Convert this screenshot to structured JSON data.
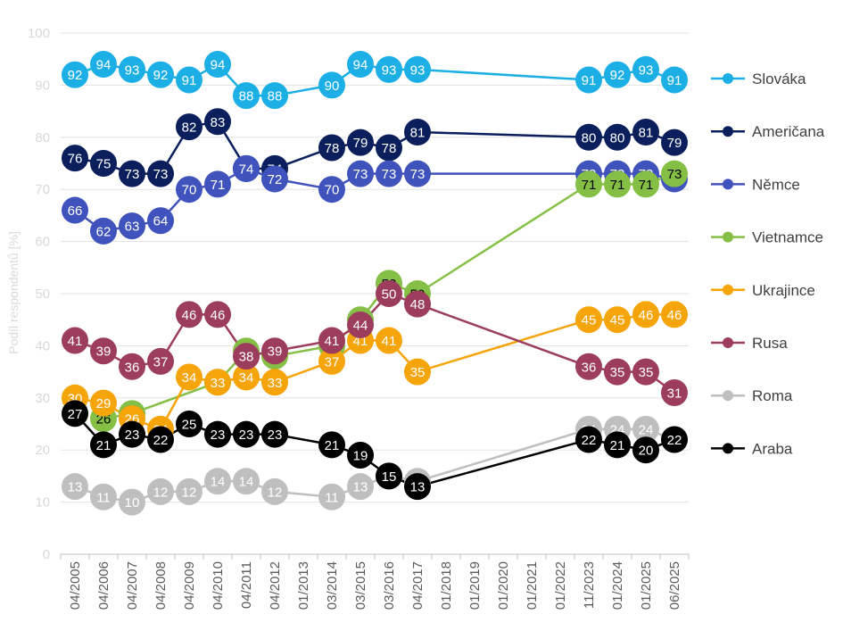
{
  "chart_data": {
    "type": "line",
    "ylabel": "Podíl respondentů [%]",
    "ylim": [
      0,
      100
    ],
    "yticks": [
      0,
      10,
      20,
      30,
      40,
      50,
      60,
      70,
      80,
      90,
      100
    ],
    "grid": "horizontal",
    "legend_position": "right",
    "categories": [
      "04/2005",
      "04/2006",
      "04/2007",
      "04/2008",
      "04/2009",
      "04/2010",
      "04/2011",
      "04/2012",
      "01/2013",
      "03/2014",
      "03/2015",
      "03/2016",
      "04/2017",
      "01/2018",
      "01/2019",
      "01/2020",
      "01/2021",
      "01/2022",
      "11/2023",
      "01/2024",
      "01/2025",
      "06/2025"
    ],
    "series": [
      {
        "name": "Slováka",
        "color": "#1bafe6",
        "label_color": "#ffffff",
        "values": [
          92,
          94,
          93,
          92,
          91,
          94,
          88,
          88,
          null,
          90,
          94,
          93,
          93,
          null,
          null,
          null,
          null,
          null,
          91,
          92,
          93,
          91
        ]
      },
      {
        "name": "Američana",
        "color": "#0b1f5c",
        "label_color": "#ffffff",
        "values": [
          76,
          75,
          73,
          73,
          82,
          83,
          74,
          74,
          null,
          78,
          79,
          78,
          81,
          null,
          null,
          null,
          null,
          null,
          80,
          80,
          81,
          79
        ]
      },
      {
        "name": "Němce",
        "color": "#4052bb",
        "label_color": "#ffffff",
        "values": [
          66,
          62,
          63,
          64,
          70,
          71,
          74,
          72,
          null,
          70,
          73,
          73,
          73,
          null,
          null,
          null,
          null,
          null,
          73,
          73,
          73,
          72
        ]
      },
      {
        "name": "Vietnamce",
        "color": "#85bf45",
        "label_color": "#000000",
        "values": [
          null,
          26,
          27,
          null,
          null,
          33,
          39,
          38,
          null,
          40,
          45,
          52,
          50,
          null,
          null,
          null,
          null,
          null,
          71,
          71,
          71,
          73
        ]
      },
      {
        "name": "Ukrajince",
        "color": "#f5a40a",
        "label_color": "#ffffff",
        "values": [
          30,
          29,
          26,
          24,
          34,
          33,
          34,
          33,
          null,
          37,
          41,
          41,
          35,
          null,
          null,
          null,
          null,
          null,
          45,
          45,
          46,
          46
        ]
      },
      {
        "name": "Rusa",
        "color": "#9c3d5e",
        "label_color": "#ffffff",
        "values": [
          41,
          39,
          36,
          37,
          46,
          46,
          38,
          39,
          null,
          41,
          44,
          50,
          48,
          null,
          null,
          null,
          null,
          null,
          36,
          35,
          35,
          31
        ]
      },
      {
        "name": "Roma",
        "color": "#bfbfbf",
        "label_color": "#ffffff",
        "values": [
          13,
          11,
          10,
          12,
          12,
          14,
          14,
          12,
          null,
          11,
          13,
          15,
          14,
          null,
          null,
          null,
          null,
          null,
          24,
          24,
          24,
          22
        ]
      },
      {
        "name": "Araba",
        "color": "#000000",
        "label_color": "#ffffff",
        "values": [
          27,
          21,
          23,
          22,
          25,
          23,
          23,
          23,
          null,
          21,
          19,
          15,
          13,
          null,
          null,
          null,
          null,
          null,
          22,
          21,
          20,
          22
        ]
      }
    ]
  }
}
